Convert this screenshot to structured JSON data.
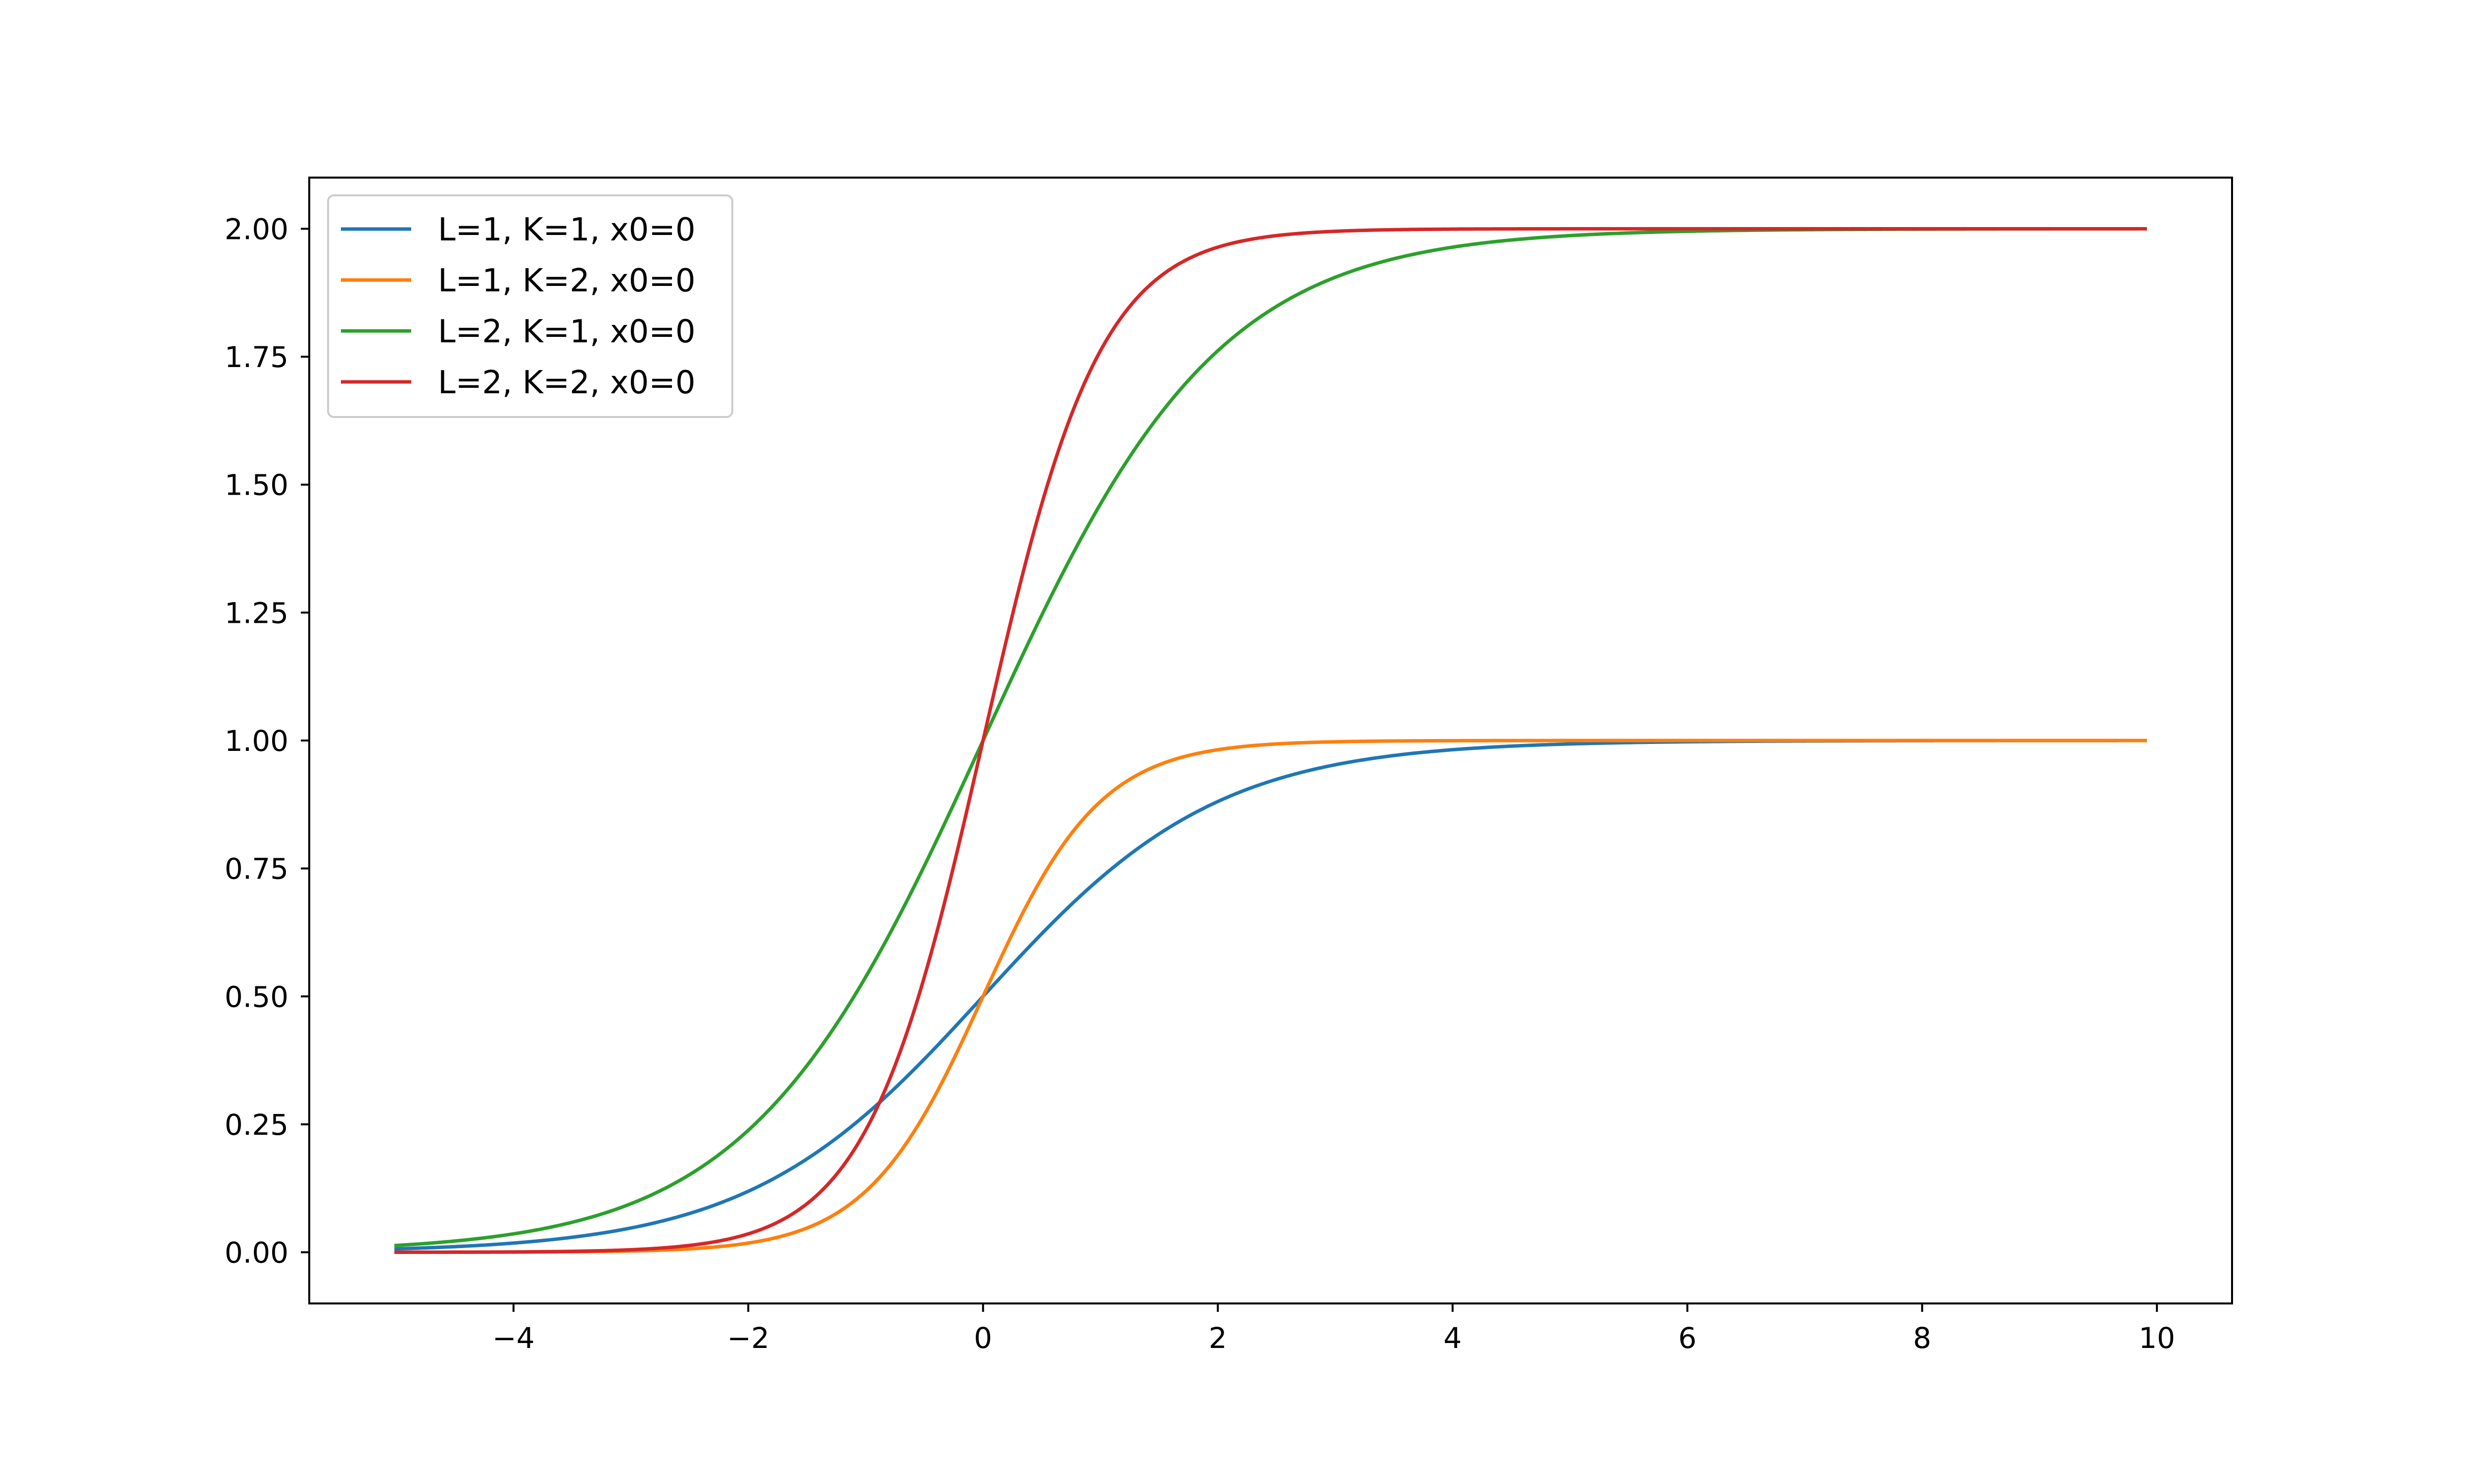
{
  "chart_data": {
    "type": "line",
    "title": "",
    "xlabel": "",
    "ylabel": "",
    "xlim": [
      -5.74,
      10.64
    ],
    "ylim": [
      -0.1,
      2.1
    ],
    "x_domain": [
      -5,
      9.9
    ],
    "xticks": [
      -4,
      -2,
      0,
      2,
      4,
      6,
      8,
      10
    ],
    "xtick_labels": [
      "−4",
      "−2",
      "0",
      "2",
      "4",
      "6",
      "8",
      "10"
    ],
    "yticks": [
      0,
      0.25,
      0.5,
      0.75,
      1.0,
      1.25,
      1.5,
      1.75,
      2.0
    ],
    "ytick_labels": [
      "0.00",
      "0.25",
      "0.50",
      "0.75",
      "1.00",
      "1.25",
      "1.50",
      "1.75",
      "2.00"
    ],
    "grid": false,
    "legend_position": "top-left",
    "series": [
      {
        "name": "L=1, K=1, x0=0",
        "L": 1,
        "K": 1,
        "x0": 0,
        "color": "#1f77b4"
      },
      {
        "name": "L=1, K=2, x0=0",
        "L": 1,
        "K": 2,
        "x0": 0,
        "color": "#ff7f0e"
      },
      {
        "name": "L=2, K=1, x0=0",
        "L": 2,
        "K": 1,
        "x0": 0,
        "color": "#2ca02c"
      },
      {
        "name": "L=2, K=2, x0=0",
        "L": 2,
        "K": 2,
        "x0": 0,
        "color": "#d62728"
      }
    ]
  }
}
